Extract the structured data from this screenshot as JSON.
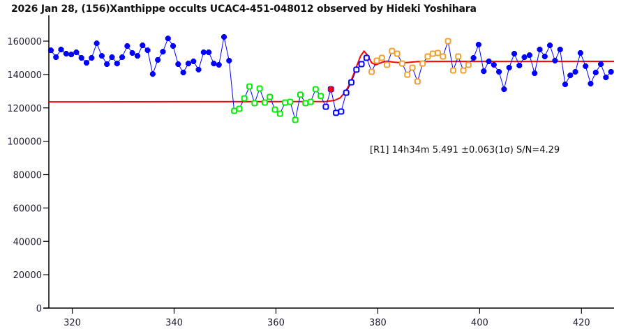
{
  "chart_data": {
    "type": "line",
    "title": "2026 Jan 28, (156)Xanthippe occults UCAC4-451-048012 observed by Hideki Yoshihara",
    "xlabel": "",
    "ylabel": "",
    "xlim": [
      315.4,
      426.4
    ],
    "ylim": [
      0,
      175000
    ],
    "x_ticks": [
      320,
      340,
      360,
      380,
      400,
      420
    ],
    "y_ticks": [
      0,
      20000,
      40000,
      60000,
      80000,
      100000,
      120000,
      140000,
      160000
    ],
    "grid": false,
    "annotation": "[R1] 14h34m 5.491 ±0.063(1σ) S/N=4.29",
    "x_start": 315.8,
    "x_step": 1,
    "y": [
      154500,
      150400,
      155000,
      152500,
      152000,
      153300,
      150000,
      147000,
      150000,
      158700,
      151200,
      146200,
      150400,
      146600,
      150400,
      157100,
      152900,
      151200,
      157500,
      154500,
      140300,
      148700,
      153700,
      161600,
      157100,
      146200,
      141200,
      146600,
      147900,
      142900,
      153300,
      153300,
      146600,
      145800,
      162500,
      148300,
      118200,
      119500,
      125700,
      132800,
      122800,
      131600,
      123200,
      126600,
      119000,
      116500,
      123200,
      123600,
      112800,
      127900,
      122800,
      123600,
      131200,
      127100,
      120700,
      131200,
      117000,
      117800,
      129100,
      135300,
      142900,
      146200,
      150000,
      141600,
      148300,
      150000,
      145800,
      154100,
      152500,
      146600,
      139900,
      144100,
      135800,
      146600,
      150800,
      152500,
      152900,
      150800,
      160000,
      142400,
      150800,
      142400,
      145800,
      150000,
      157900,
      142000,
      147900,
      145800,
      141600,
      131200,
      144100,
      152500,
      145400,
      150400,
      151600,
      140800,
      155000,
      150800,
      157500,
      148300,
      155000,
      134100,
      139500,
      141600,
      152900,
      145000,
      134500,
      141200,
      146200,
      138300,
      141600
    ],
    "marker_groups": [
      {
        "name": "outside-event",
        "style": "filled",
        "color": "#0000ff",
        "from": 0,
        "to": 35
      },
      {
        "name": "pre-fit",
        "style": "open",
        "color": "#00ee00",
        "from": 36,
        "to": 53
      },
      {
        "name": "transition",
        "style": "open",
        "color": "#0000ff",
        "from": 54,
        "to": 62
      },
      {
        "name": "event-point",
        "style": "filled",
        "color": "#ff0000",
        "from": 55,
        "to": 55
      },
      {
        "name": "post-fit",
        "style": "open",
        "color": "#f0a030",
        "from": 63,
        "to": 82
      },
      {
        "name": "outside-event",
        "style": "filled",
        "color": "#0000ff",
        "from": 83,
        "to": 110
      }
    ],
    "line_color": "#0000ff",
    "model": {
      "color": "#ff0000",
      "points": [
        [
          315.4,
          123600
        ],
        [
          369.8,
          123800
        ],
        [
          371.5,
          124500
        ],
        [
          372.6,
          126000
        ],
        [
          373.6,
          129500
        ],
        [
          374.6,
          135000
        ],
        [
          375.6,
          143000
        ],
        [
          376.6,
          151000
        ],
        [
          377.3,
          154000
        ],
        [
          378.0,
          151500
        ],
        [
          378.8,
          147000
        ],
        [
          379.6,
          145800
        ],
        [
          380.8,
          147300
        ],
        [
          381.8,
          148000
        ],
        [
          383,
          147400
        ],
        [
          385,
          147000
        ],
        [
          388,
          147800
        ],
        [
          426.4,
          147900
        ]
      ]
    }
  }
}
